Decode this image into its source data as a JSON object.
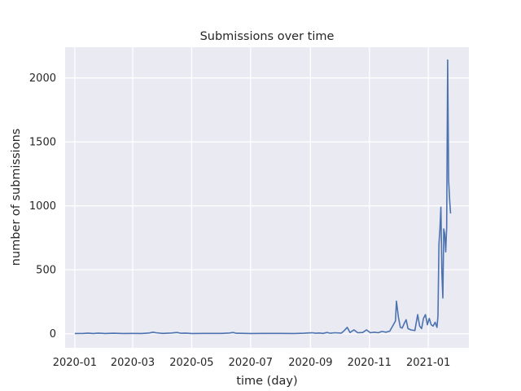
{
  "chart_data": {
    "type": "line",
    "title": "Submissions over time",
    "xlabel": "time (day)",
    "ylabel": "number of submissions",
    "x_start": "2020-01-01",
    "xlim": [
      "2019-12-22",
      "2021-02-12"
    ],
    "ylim": [
      -110,
      2240
    ],
    "xticks": [
      "2020-01",
      "2020-03",
      "2020-05",
      "2020-07",
      "2020-09",
      "2020-11",
      "2021-01"
    ],
    "xtick_dates": [
      "2020-01-01",
      "2020-03-01",
      "2020-05-01",
      "2020-07-01",
      "2020-09-01",
      "2020-11-01",
      "2021-01-01"
    ],
    "yticks": [
      0,
      500,
      1000,
      1500,
      2000
    ],
    "grid": true,
    "colors": {
      "line": "#4c72b0",
      "background": "#eaeaf2",
      "grid": "#ffffff"
    },
    "series": [
      {
        "points": [
          [
            "2020-01-01",
            2
          ],
          [
            "2020-01-10",
            3
          ],
          [
            "2020-01-15",
            5
          ],
          [
            "2020-01-20",
            2
          ],
          [
            "2020-01-25",
            5
          ],
          [
            "2020-02-01",
            2
          ],
          [
            "2020-02-10",
            4
          ],
          [
            "2020-02-20",
            2
          ],
          [
            "2020-03-01",
            3
          ],
          [
            "2020-03-10",
            2
          ],
          [
            "2020-03-18",
            6
          ],
          [
            "2020-03-22",
            12
          ],
          [
            "2020-03-25",
            8
          ],
          [
            "2020-04-01",
            3
          ],
          [
            "2020-04-10",
            6
          ],
          [
            "2020-04-16",
            10
          ],
          [
            "2020-04-20",
            4
          ],
          [
            "2020-04-25",
            5
          ],
          [
            "2020-05-01",
            2
          ],
          [
            "2020-05-15",
            3
          ],
          [
            "2020-06-01",
            3
          ],
          [
            "2020-06-09",
            6
          ],
          [
            "2020-06-13",
            10
          ],
          [
            "2020-06-16",
            4
          ],
          [
            "2020-07-01",
            2
          ],
          [
            "2020-07-15",
            3
          ],
          [
            "2020-08-01",
            3
          ],
          [
            "2020-08-15",
            2
          ],
          [
            "2020-08-25",
            4
          ],
          [
            "2020-09-03",
            8
          ],
          [
            "2020-09-06",
            4
          ],
          [
            "2020-09-10",
            6
          ],
          [
            "2020-09-14",
            3
          ],
          [
            "2020-09-18",
            10
          ],
          [
            "2020-09-22",
            4
          ],
          [
            "2020-09-26",
            8
          ],
          [
            "2020-10-03",
            5
          ],
          [
            "2020-10-06",
            25
          ],
          [
            "2020-10-09",
            50
          ],
          [
            "2020-10-12",
            10
          ],
          [
            "2020-10-16",
            30
          ],
          [
            "2020-10-20",
            8
          ],
          [
            "2020-10-25",
            10
          ],
          [
            "2020-10-29",
            30
          ],
          [
            "2020-11-02",
            8
          ],
          [
            "2020-11-06",
            12
          ],
          [
            "2020-11-10",
            8
          ],
          [
            "2020-11-14",
            18
          ],
          [
            "2020-11-18",
            12
          ],
          [
            "2020-11-22",
            20
          ],
          [
            "2020-11-25",
            60
          ],
          [
            "2020-11-28",
            100
          ],
          [
            "2020-11-29",
            255
          ],
          [
            "2020-12-01",
            130
          ],
          [
            "2020-12-03",
            50
          ],
          [
            "2020-12-05",
            45
          ],
          [
            "2020-12-07",
            80
          ],
          [
            "2020-12-09",
            110
          ],
          [
            "2020-12-11",
            40
          ],
          [
            "2020-12-14",
            30
          ],
          [
            "2020-12-18",
            25
          ],
          [
            "2020-12-21",
            150
          ],
          [
            "2020-12-23",
            60
          ],
          [
            "2020-12-25",
            40
          ],
          [
            "2020-12-27",
            120
          ],
          [
            "2020-12-29",
            150
          ],
          [
            "2020-12-31",
            70
          ],
          [
            "2021-01-02",
            120
          ],
          [
            "2021-01-04",
            70
          ],
          [
            "2021-01-06",
            60
          ],
          [
            "2021-01-08",
            90
          ],
          [
            "2021-01-10",
            50
          ],
          [
            "2021-01-11",
            140
          ],
          [
            "2021-01-12",
            700
          ],
          [
            "2021-01-13",
            820
          ],
          [
            "2021-01-14",
            990
          ],
          [
            "2021-01-15",
            480
          ],
          [
            "2021-01-16",
            280
          ],
          [
            "2021-01-17",
            820
          ],
          [
            "2021-01-18",
            780
          ],
          [
            "2021-01-19",
            640
          ],
          [
            "2021-01-20",
            830
          ],
          [
            "2021-01-21",
            2140
          ],
          [
            "2021-01-22",
            1200
          ],
          [
            "2021-01-23",
            1050
          ],
          [
            "2021-01-24",
            940
          ]
        ]
      }
    ]
  }
}
